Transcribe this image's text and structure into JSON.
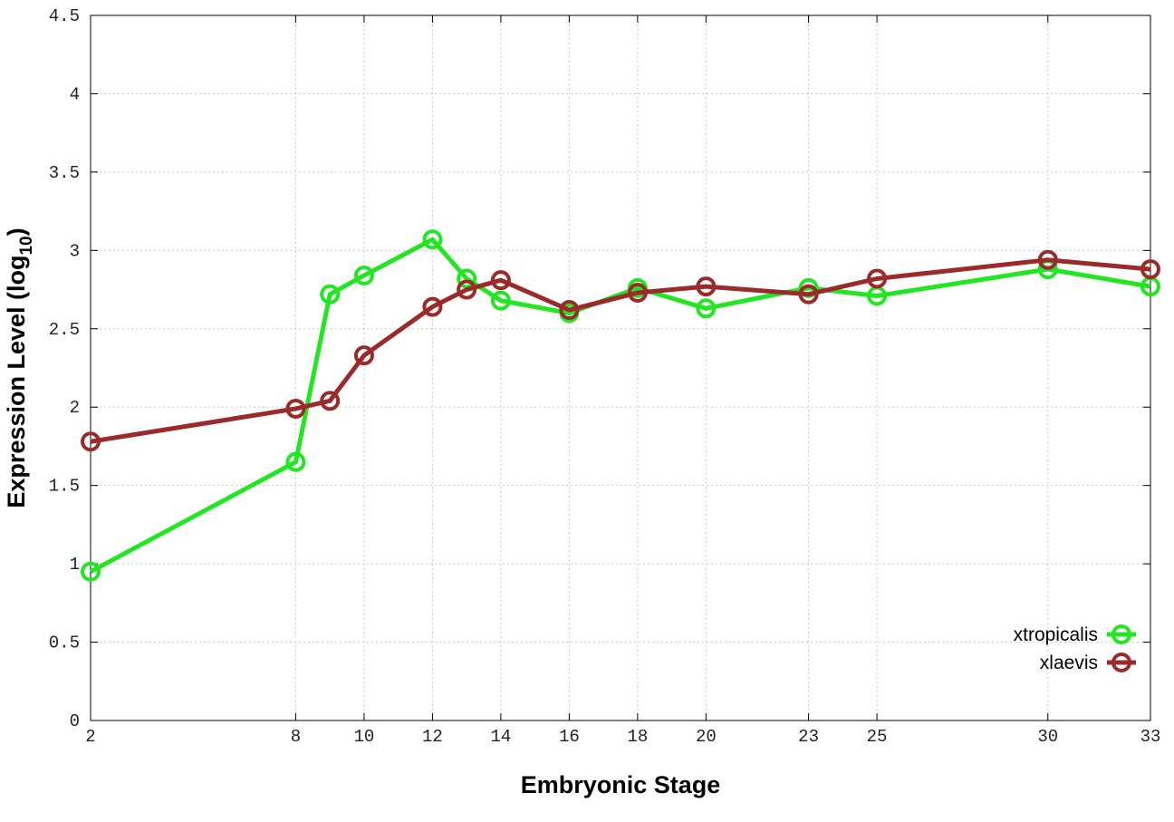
{
  "chart_data": {
    "type": "line",
    "title": "",
    "xlabel": "Embryonic Stage",
    "ylabel": "Expression Level (log",
    "ylabel_sub": "10",
    "ylabel_close": ")",
    "xlim": [
      2,
      33
    ],
    "ylim": [
      0,
      4.5
    ],
    "grid": true,
    "legend_position": "bottom-right",
    "x_ticks": [
      2,
      8,
      10,
      12,
      14,
      16,
      18,
      20,
      23,
      25,
      30,
      33
    ],
    "y_ticks": [
      "0",
      "0.5",
      "1",
      "1.5",
      "2",
      "2.5",
      "3",
      "3.5",
      "4",
      "4.5"
    ],
    "x": [
      2,
      8,
      9,
      10,
      12,
      13,
      14,
      16,
      18,
      20,
      23,
      25,
      30,
      33
    ],
    "series": [
      {
        "name": "xtropicalis",
        "color": "#22e622",
        "values": [
          0.95,
          1.65,
          2.72,
          2.84,
          3.07,
          2.82,
          2.68,
          2.6,
          2.76,
          2.63,
          2.76,
          2.71,
          2.88,
          2.77
        ]
      },
      {
        "name": "xlaevis",
        "color": "#9b2a2a",
        "values": [
          1.78,
          1.99,
          2.04,
          2.33,
          2.64,
          2.75,
          2.81,
          2.62,
          2.73,
          2.77,
          2.72,
          2.82,
          2.94,
          2.88
        ]
      }
    ]
  }
}
